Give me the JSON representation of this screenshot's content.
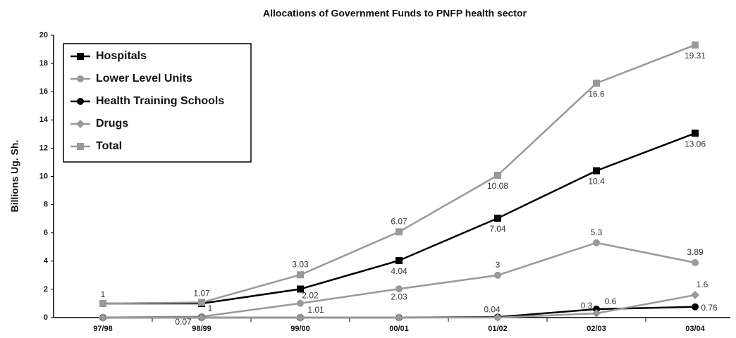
{
  "chart_data": {
    "type": "line",
    "title": "Allocations of Government Funds to PNFP health sector",
    "y_label": "Billions Ug. Sh.",
    "categories": [
      "97/98",
      "98/99",
      "99/00",
      "00/01",
      "01/02",
      "02/03",
      "03/04"
    ],
    "ylim": [
      0,
      20
    ],
    "yticks": [
      0,
      2,
      4,
      6,
      8,
      10,
      12,
      14,
      16,
      18,
      20
    ],
    "legend": "top-left",
    "series": [
      {
        "name": "Hospitals",
        "color": "#000000",
        "marker": "square",
        "values": [
          1,
          1,
          2.02,
          4.04,
          7.04,
          10.4,
          13.06
        ],
        "value_labels": [
          "1",
          "1",
          "2.02",
          "4.04",
          "7.04",
          "10.4",
          "13.06"
        ]
      },
      {
        "name": "Lower Level Units",
        "color": "#999999",
        "marker": "circle",
        "values": [
          0,
          0.07,
          1.01,
          2.03,
          3,
          5.3,
          3.89
        ],
        "value_labels": [
          null,
          "0.07",
          "1.01",
          "2.03",
          "3",
          "5.3",
          "3.89"
        ]
      },
      {
        "name": "Health Training Schools",
        "color": "#000000",
        "marker": "circle",
        "values": [
          0,
          0,
          0,
          0,
          0.04,
          0.6,
          0.76
        ],
        "value_labels": [
          null,
          null,
          null,
          null,
          "0.04",
          "0.6",
          "0.76"
        ]
      },
      {
        "name": "Drugs",
        "color": "#999999",
        "marker": "diamond",
        "values": [
          0,
          0,
          0,
          0,
          0,
          0.3,
          1.6
        ],
        "value_labels": [
          null,
          null,
          null,
          null,
          null,
          "0.3",
          "1.6"
        ]
      },
      {
        "name": "Total",
        "color": "#999999",
        "marker": "square",
        "values": [
          1,
          1.07,
          3.03,
          6.07,
          10.08,
          16.6,
          19.31
        ],
        "value_labels": [
          null,
          "1.07",
          "3.03",
          "6.07",
          "10.08",
          "16.6",
          "19.31"
        ]
      }
    ]
  }
}
